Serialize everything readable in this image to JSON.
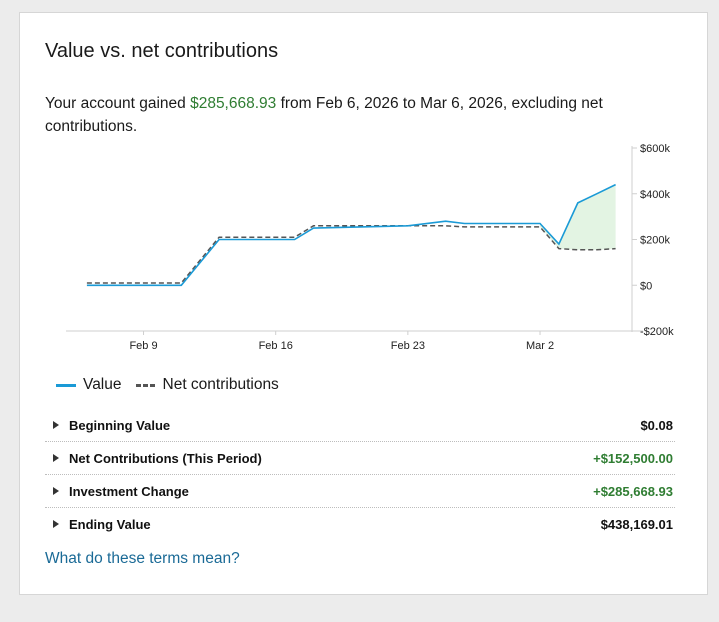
{
  "card": {
    "title": "Value vs. net contributions",
    "summary_prefix": "Your account gained ",
    "summary_amount": "$285,668.93",
    "summary_suffix": " from Feb 6, 2026 to Mar 6, 2026, excluding net contributions.",
    "gain_color": "#2f7d32"
  },
  "chart_data": {
    "type": "line",
    "title": "",
    "xlabel": "",
    "ylabel": "",
    "x_ticks": [
      "Feb 9",
      "Feb 16",
      "Feb 23",
      "Mar 2"
    ],
    "x_tick_days": [
      3,
      10,
      17,
      24
    ],
    "x_range": [
      -1,
      28.5
    ],
    "y_ticks": [
      600000,
      400000,
      200000,
      0,
      -200000
    ],
    "y_tick_labels": [
      "$600k",
      "$400k",
      "$200k",
      "$0",
      "-$200k"
    ],
    "ylim": [
      -200000,
      600000
    ],
    "y_axis_side": "right",
    "day0": "Feb 6, 2026",
    "series": [
      {
        "name": "Value",
        "style": "solid",
        "color": "#1a9ad6",
        "x": [
          0,
          5,
          7,
          11,
          12,
          17,
          19,
          20,
          24,
          25,
          26,
          27,
          28
        ],
        "y": [
          0,
          0,
          200000,
          200000,
          250000,
          260000,
          280000,
          270000,
          270000,
          180000,
          360000,
          400000,
          440000
        ]
      },
      {
        "name": "Net contributions",
        "style": "dashed",
        "color": "#555555",
        "x": [
          0,
          5,
          7,
          11,
          12,
          19,
          20,
          24,
          25,
          26,
          27,
          28
        ],
        "y": [
          10000,
          10000,
          210000,
          210000,
          260000,
          260000,
          255000,
          255000,
          160000,
          155000,
          155000,
          160000
        ]
      }
    ],
    "fill_positive_color": "#e3f4e3",
    "fill_negative_color": "#f5e1e1"
  },
  "legend": {
    "value_label": "Value",
    "contrib_label": "Net contributions"
  },
  "rows": [
    {
      "label": "Beginning Value",
      "value": "$0.08",
      "positive": false
    },
    {
      "label": "Net Contributions (This Period)",
      "value": "+$152,500.00",
      "positive": true
    },
    {
      "label": "Investment Change",
      "value": "+$285,668.93",
      "positive": true
    },
    {
      "label": "Ending Value",
      "value": "$438,169.01",
      "positive": false
    }
  ],
  "link": {
    "label": "What do these terms mean?"
  }
}
